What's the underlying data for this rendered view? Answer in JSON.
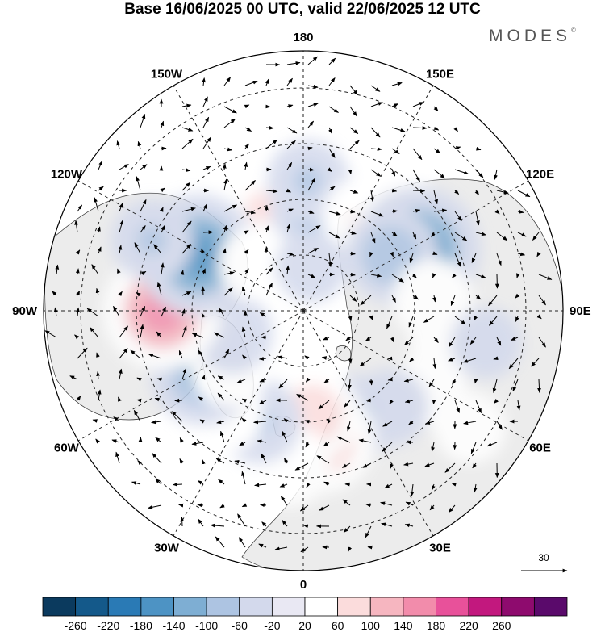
{
  "title": "Base 16/06/2025 00 UTC, valid 22/06/2025 12 UTC",
  "brand": "MODES",
  "brand_mark": "©",
  "meridian_labels": [
    {
      "text": "180",
      "lon": 180
    },
    {
      "text": "150E",
      "lon": 150
    },
    {
      "text": "120E",
      "lon": 120
    },
    {
      "text": "90E",
      "lon": 90
    },
    {
      "text": "60E",
      "lon": 60
    },
    {
      "text": "30E",
      "lon": 30
    },
    {
      "text": "0",
      "lon": 0
    },
    {
      "text": "30W",
      "lon": -30
    },
    {
      "text": "60W",
      "lon": -60
    },
    {
      "text": "90W",
      "lon": -90
    },
    {
      "text": "120W",
      "lon": -120
    },
    {
      "text": "150W",
      "lon": -150
    }
  ],
  "reference_vector": {
    "label": "30"
  },
  "colorbar": {
    "colors": [
      "#0b3a5e",
      "#14598a",
      "#2a7ab5",
      "#4d93c4",
      "#7eaed3",
      "#adc4e2",
      "#d3d9ec",
      "#e9e8f3",
      "#ffffff",
      "#fbdcdc",
      "#f6b6c0",
      "#f28cab",
      "#e8519a",
      "#c2187e",
      "#8e0b6e",
      "#5a0a6b"
    ],
    "labels": [
      "-260",
      "-220",
      "-180",
      "-140",
      "-100",
      "-60",
      "-20",
      "20",
      "60",
      "100",
      "140",
      "180",
      "220",
      "260"
    ]
  },
  "anomalies": [
    {
      "lat": 65,
      "lon": -152,
      "value": 110
    },
    {
      "lat": 60,
      "lon": -158,
      "value": 70
    },
    {
      "lat": 62,
      "lon": 172,
      "value": -95
    },
    {
      "lat": 55,
      "lon": 178,
      "value": -60
    },
    {
      "lat": 60,
      "lon": 145,
      "value": 80
    },
    {
      "lat": 52,
      "lon": 140,
      "value": 60
    },
    {
      "lat": 55,
      "lon": 118,
      "value": -180
    },
    {
      "lat": 62,
      "lon": 122,
      "value": -90
    },
    {
      "lat": 55,
      "lon": 95,
      "value": 55
    },
    {
      "lat": 50,
      "lon": 78,
      "value": 45
    },
    {
      "lat": 50,
      "lon": 58,
      "value": 40
    },
    {
      "lat": 55,
      "lon": 42,
      "value": -45
    },
    {
      "lat": 58,
      "lon": 28,
      "value": -60
    },
    {
      "lat": 55,
      "lon": 8,
      "value": 130
    },
    {
      "lat": 62,
      "lon": 5,
      "value": 90
    },
    {
      "lat": 48,
      "lon": -5,
      "value": 60
    },
    {
      "lat": 58,
      "lon": -22,
      "value": -70
    },
    {
      "lat": 55,
      "lon": -38,
      "value": 55
    },
    {
      "lat": 58,
      "lon": -58,
      "value": -120
    },
    {
      "lat": 65,
      "lon": -52,
      "value": 50
    },
    {
      "lat": 70,
      "lon": -72,
      "value": -55
    },
    {
      "lat": 52,
      "lon": -90,
      "value": 160
    },
    {
      "lat": 58,
      "lon": -118,
      "value": -170
    },
    {
      "lat": 45,
      "lon": -115,
      "value": -60
    },
    {
      "lat": 72,
      "lon": -135,
      "value": 40
    },
    {
      "lat": 78,
      "lon": 170,
      "value": -30
    },
    {
      "lat": 40,
      "lon": 80,
      "value": -30
    },
    {
      "lat": 35,
      "lon": 55,
      "value": 30
    }
  ]
}
